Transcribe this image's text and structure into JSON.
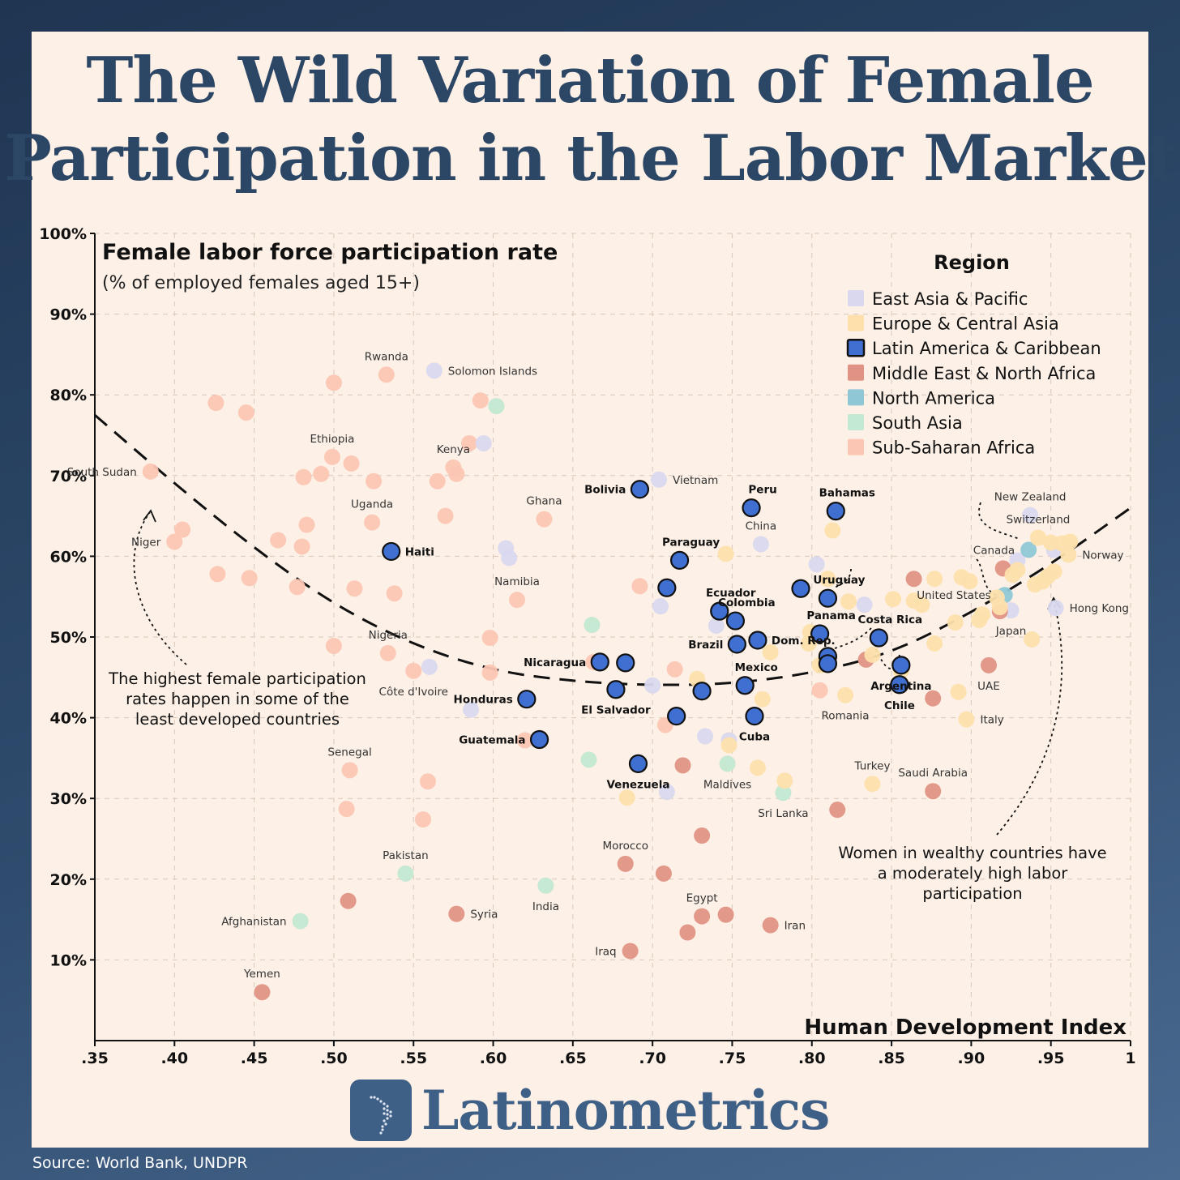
{
  "title_line1": "The Wild Variation of Female",
  "title_line2": "Participation in the Labor Market",
  "chart_data": {
    "type": "scatter",
    "title": "Female labor force participation rate",
    "subtitle": "(% of employed females aged 15+)",
    "xlabel": "Human Development Index",
    "xlim": [
      0.35,
      1.0
    ],
    "ylim": [
      0,
      100
    ],
    "x_ticks": [
      {
        "v": 0.35,
        "label": ".35"
      },
      {
        "v": 0.4,
        "label": ".40"
      },
      {
        "v": 0.45,
        "label": ".45"
      },
      {
        "v": 0.5,
        "label": ".50"
      },
      {
        "v": 0.55,
        "label": ".55"
      },
      {
        "v": 0.6,
        "label": ".60"
      },
      {
        "v": 0.65,
        "label": ".65"
      },
      {
        "v": 0.7,
        "label": ".70"
      },
      {
        "v": 0.75,
        "label": ".75"
      },
      {
        "v": 0.8,
        "label": ".80"
      },
      {
        "v": 0.85,
        "label": ".85"
      },
      {
        "v": 0.9,
        "label": ".90"
      },
      {
        "v": 0.95,
        "label": ".95"
      },
      {
        "v": 1.0,
        "label": "1"
      }
    ],
    "y_ticks": [
      {
        "v": 10,
        "label": "10%"
      },
      {
        "v": 20,
        "label": "20%"
      },
      {
        "v": 30,
        "label": "30%"
      },
      {
        "v": 40,
        "label": "40%"
      },
      {
        "v": 50,
        "label": "50%"
      },
      {
        "v": 60,
        "label": "60%"
      },
      {
        "v": 70,
        "label": "70%"
      },
      {
        "v": 80,
        "label": "80%"
      },
      {
        "v": 90,
        "label": "90%"
      },
      {
        "v": 100,
        "label": "100%"
      }
    ],
    "grid": true,
    "legend": {
      "title": "Region",
      "placement": "top-right",
      "items": [
        {
          "key": "eap",
          "label": "East Asia & Pacific",
          "color": "#d9d8ef"
        },
        {
          "key": "eca",
          "label": "Europe & Central Asia",
          "color": "#fde0ac"
        },
        {
          "key": "lac",
          "label": "Latin America & Caribbean",
          "color": "#3f6fd1"
        },
        {
          "key": "mena",
          "label": "Middle East & North Africa",
          "color": "#e09384"
        },
        {
          "key": "na",
          "label": "North America",
          "color": "#8fc7d6"
        },
        {
          "key": "sa",
          "label": "South Asia",
          "color": "#c3e8d3"
        },
        {
          "key": "ssa",
          "label": "Sub-Saharan Africa",
          "color": "#fcc6b4"
        }
      ]
    },
    "trend": [
      [
        0.35,
        77.5
      ],
      [
        0.4,
        69
      ],
      [
        0.45,
        61
      ],
      [
        0.5,
        54
      ],
      [
        0.55,
        49
      ],
      [
        0.6,
        45.8
      ],
      [
        0.65,
        44.5
      ],
      [
        0.7,
        44
      ],
      [
        0.75,
        44.2
      ],
      [
        0.8,
        45.5
      ],
      [
        0.85,
        48
      ],
      [
        0.9,
        53
      ],
      [
        0.95,
        59
      ],
      [
        1.0,
        66
      ]
    ],
    "points": [
      {
        "r": "ssa",
        "x": 0.385,
        "y": 70.5,
        "label": "South Sudan"
      },
      {
        "r": "ssa",
        "x": 0.4,
        "y": 61.8,
        "label": "Niger"
      },
      {
        "r": "ssa",
        "x": 0.405,
        "y": 63.3
      },
      {
        "r": "ssa",
        "x": 0.426,
        "y": 79
      },
      {
        "r": "ssa",
        "x": 0.427,
        "y": 57.8
      },
      {
        "r": "ssa",
        "x": 0.445,
        "y": 77.8
      },
      {
        "r": "ssa",
        "x": 0.447,
        "y": 57.3
      },
      {
        "r": "ssa",
        "x": 0.465,
        "y": 62
      },
      {
        "r": "ssa",
        "x": 0.477,
        "y": 56.2
      },
      {
        "r": "ssa",
        "x": 0.48,
        "y": 61.2
      },
      {
        "r": "ssa",
        "x": 0.481,
        "y": 69.8
      },
      {
        "r": "ssa",
        "x": 0.483,
        "y": 63.9
      },
      {
        "r": "ssa",
        "x": 0.492,
        "y": 70.2
      },
      {
        "r": "ssa",
        "x": 0.499,
        "y": 72.3,
        "label": "Ethiopia"
      },
      {
        "r": "ssa",
        "x": 0.5,
        "y": 48.9
      },
      {
        "r": "ssa",
        "x": 0.5,
        "y": 81.5
      },
      {
        "r": "ssa",
        "x": 0.511,
        "y": 71.5
      },
      {
        "r": "ssa",
        "x": 0.513,
        "y": 56
      },
      {
        "r": "ssa",
        "x": 0.524,
        "y": 64.2,
        "label": "Uganda"
      },
      {
        "r": "ssa",
        "x": 0.525,
        "y": 69.3
      },
      {
        "r": "ssa",
        "x": 0.533,
        "y": 82.5,
        "label": "Rwanda"
      },
      {
        "r": "ssa",
        "x": 0.534,
        "y": 48,
        "label": "Nigeria"
      },
      {
        "r": "ssa",
        "x": 0.538,
        "y": 55.4
      },
      {
        "r": "ssa",
        "x": 0.55,
        "y": 45.8,
        "label": "Côte d'Ivoire"
      },
      {
        "r": "ssa",
        "x": 0.51,
        "y": 33.5,
        "label": "Senegal"
      },
      {
        "r": "ssa",
        "x": 0.508,
        "y": 28.7
      },
      {
        "r": "ssa",
        "x": 0.556,
        "y": 27.4
      },
      {
        "r": "ssa",
        "x": 0.559,
        "y": 32.1
      },
      {
        "r": "ssa",
        "x": 0.565,
        "y": 69.3
      },
      {
        "r": "ssa",
        "x": 0.57,
        "y": 65
      },
      {
        "r": "ssa",
        "x": 0.575,
        "y": 71,
        "label": "Kenya"
      },
      {
        "r": "ssa",
        "x": 0.577,
        "y": 70.2
      },
      {
        "r": "ssa",
        "x": 0.585,
        "y": 74
      },
      {
        "r": "ssa",
        "x": 0.592,
        "y": 79.3
      },
      {
        "r": "ssa",
        "x": 0.598,
        "y": 49.9
      },
      {
        "r": "ssa",
        "x": 0.598,
        "y": 45.6
      },
      {
        "r": "ssa",
        "x": 0.615,
        "y": 54.6,
        "label": "Namibia"
      },
      {
        "r": "ssa",
        "x": 0.62,
        "y": 37.2
      },
      {
        "r": "ssa",
        "x": 0.632,
        "y": 64.6,
        "label": "Ghana"
      },
      {
        "r": "ssa",
        "x": 0.663,
        "y": 46.9
      },
      {
        "r": "ssa",
        "x": 0.692,
        "y": 56.3
      },
      {
        "r": "ssa",
        "x": 0.708,
        "y": 39.1
      },
      {
        "r": "ssa",
        "x": 0.714,
        "y": 46
      },
      {
        "r": "ssa",
        "x": 0.805,
        "y": 43.4
      },
      {
        "r": "eap",
        "x": 0.56,
        "y": 46.3
      },
      {
        "r": "eap",
        "x": 0.563,
        "y": 83,
        "label": "Solomon Islands"
      },
      {
        "r": "eap",
        "x": 0.586,
        "y": 41
      },
      {
        "r": "eap",
        "x": 0.594,
        "y": 74
      },
      {
        "r": "eap",
        "x": 0.608,
        "y": 61
      },
      {
        "r": "eap",
        "x": 0.61,
        "y": 59.8
      },
      {
        "r": "eap",
        "x": 0.704,
        "y": 69.5,
        "label": "Vietnam"
      },
      {
        "r": "eap",
        "x": 0.705,
        "y": 53.8
      },
      {
        "r": "eap",
        "x": 0.7,
        "y": 44
      },
      {
        "r": "eap",
        "x": 0.709,
        "y": 30.8
      },
      {
        "r": "eap",
        "x": 0.733,
        "y": 37.7
      },
      {
        "r": "eap",
        "x": 0.74,
        "y": 51.4
      },
      {
        "r": "eap",
        "x": 0.748,
        "y": 37.2
      },
      {
        "r": "eap",
        "x": 0.768,
        "y": 61.5,
        "label": "China"
      },
      {
        "r": "eap",
        "x": 0.803,
        "y": 59
      },
      {
        "r": "eap",
        "x": 0.833,
        "y": 54
      },
      {
        "r": "eap",
        "x": 0.937,
        "y": 65.1,
        "label": "New Zealand"
      },
      {
        "r": "eap",
        "x": 0.929,
        "y": 59.5
      },
      {
        "r": "eap",
        "x": 0.925,
        "y": 53.3,
        "label": "Japan"
      },
      {
        "r": "eap",
        "x": 0.952,
        "y": 60.8
      },
      {
        "r": "eap",
        "x": 0.953,
        "y": 53.6,
        "label": "Hong Kong"
      },
      {
        "r": "sa",
        "x": 0.602,
        "y": 78.6
      },
      {
        "r": "sa",
        "x": 0.662,
        "y": 51.5
      },
      {
        "r": "sa",
        "x": 0.66,
        "y": 34.8
      },
      {
        "r": "sa",
        "x": 0.545,
        "y": 20.7,
        "label": "Pakistan"
      },
      {
        "r": "sa",
        "x": 0.479,
        "y": 14.8,
        "label": "Afghanistan"
      },
      {
        "r": "sa",
        "x": 0.633,
        "y": 19.2,
        "label": "India"
      },
      {
        "r": "sa",
        "x": 0.747,
        "y": 34.3,
        "label": "Maldives"
      },
      {
        "r": "sa",
        "x": 0.782,
        "y": 30.7,
        "label": "Sri Lanka"
      },
      {
        "r": "mena",
        "x": 0.455,
        "y": 6,
        "label": "Yemen"
      },
      {
        "r": "mena",
        "x": 0.509,
        "y": 17.3
      },
      {
        "r": "mena",
        "x": 0.577,
        "y": 15.7,
        "label": "Syria"
      },
      {
        "r": "mena",
        "x": 0.686,
        "y": 11.1,
        "label": "Iraq"
      },
      {
        "r": "mena",
        "x": 0.683,
        "y": 21.9,
        "label": "Morocco"
      },
      {
        "r": "mena",
        "x": 0.707,
        "y": 20.7
      },
      {
        "r": "mena",
        "x": 0.719,
        "y": 34.1
      },
      {
        "r": "mena",
        "x": 0.731,
        "y": 25.4
      },
      {
        "r": "mena",
        "x": 0.731,
        "y": 15.4,
        "label": "Egypt"
      },
      {
        "r": "mena",
        "x": 0.722,
        "y": 13.4
      },
      {
        "r": "mena",
        "x": 0.746,
        "y": 15.6
      },
      {
        "r": "mena",
        "x": 0.774,
        "y": 14.3,
        "label": "Iran"
      },
      {
        "r": "mena",
        "x": 0.816,
        "y": 28.6
      },
      {
        "r": "mena",
        "x": 0.834,
        "y": 47.2
      },
      {
        "r": "mena",
        "x": 0.864,
        "y": 57.2
      },
      {
        "r": "mena",
        "x": 0.876,
        "y": 42.4
      },
      {
        "r": "mena",
        "x": 0.876,
        "y": 30.9,
        "label": "Saudi Arabia"
      },
      {
        "r": "mena",
        "x": 0.911,
        "y": 46.5,
        "label": "UAE"
      },
      {
        "r": "mena",
        "x": 0.918,
        "y": 53.2
      },
      {
        "r": "mena",
        "x": 0.92,
        "y": 58.5
      },
      {
        "r": "na",
        "x": 0.936,
        "y": 60.8,
        "label": "Canada"
      },
      {
        "r": "na",
        "x": 0.921,
        "y": 55.2,
        "label": "United States"
      },
      {
        "r": "eca",
        "x": 0.684,
        "y": 30.1
      },
      {
        "r": "eca",
        "x": 0.728,
        "y": 44.8
      },
      {
        "r": "eca",
        "x": 0.746,
        "y": 60.3
      },
      {
        "r": "eca",
        "x": 0.748,
        "y": 36.6
      },
      {
        "r": "eca",
        "x": 0.766,
        "y": 33.8
      },
      {
        "r": "eca",
        "x": 0.769,
        "y": 42.3
      },
      {
        "r": "eca",
        "x": 0.774,
        "y": 48.1
      },
      {
        "r": "eca",
        "x": 0.783,
        "y": 32.2
      },
      {
        "r": "eca",
        "x": 0.798,
        "y": 49.2
      },
      {
        "r": "eca",
        "x": 0.799,
        "y": 50.6
      },
      {
        "r": "eca",
        "x": 0.805,
        "y": 46.5
      },
      {
        "r": "eca",
        "x": 0.81,
        "y": 57.2
      },
      {
        "r": "eca",
        "x": 0.813,
        "y": 63.2
      },
      {
        "r": "eca",
        "x": 0.821,
        "y": 42.8,
        "label": "Romania"
      },
      {
        "r": "eca",
        "x": 0.823,
        "y": 54.4
      },
      {
        "r": "eca",
        "x": 0.838,
        "y": 47.8
      },
      {
        "r": "eca",
        "x": 0.838,
        "y": 31.8,
        "label": "Turkey"
      },
      {
        "r": "eca",
        "x": 0.851,
        "y": 54.7
      },
      {
        "r": "eca",
        "x": 0.856,
        "y": 45.8
      },
      {
        "r": "eca",
        "x": 0.864,
        "y": 54.5
      },
      {
        "r": "eca",
        "x": 0.869,
        "y": 54
      },
      {
        "r": "eca",
        "x": 0.877,
        "y": 49.2
      },
      {
        "r": "eca",
        "x": 0.877,
        "y": 57.2
      },
      {
        "r": "eca",
        "x": 0.89,
        "y": 51.8
      },
      {
        "r": "eca",
        "x": 0.892,
        "y": 43.2
      },
      {
        "r": "eca",
        "x": 0.894,
        "y": 57.4
      },
      {
        "r": "eca",
        "x": 0.897,
        "y": 39.8,
        "label": "Italy"
      },
      {
        "r": "eca",
        "x": 0.899,
        "y": 56.9
      },
      {
        "r": "eca",
        "x": 0.905,
        "y": 52.1
      },
      {
        "r": "eca",
        "x": 0.907,
        "y": 52.8
      },
      {
        "r": "eca",
        "x": 0.916,
        "y": 54.9
      },
      {
        "r": "eca",
        "x": 0.918,
        "y": 53.7
      },
      {
        "r": "eca",
        "x": 0.926,
        "y": 57.7
      },
      {
        "r": "eca",
        "x": 0.929,
        "y": 58.3
      },
      {
        "r": "eca",
        "x": 0.938,
        "y": 49.7
      },
      {
        "r": "eca",
        "x": 0.94,
        "y": 56.5
      },
      {
        "r": "eca",
        "x": 0.942,
        "y": 62.3,
        "label": "Switzerland"
      },
      {
        "r": "eca",
        "x": 0.945,
        "y": 56.9
      },
      {
        "r": "eca",
        "x": 0.948,
        "y": 57.5
      },
      {
        "r": "eca",
        "x": 0.95,
        "y": 61.7
      },
      {
        "r": "eca",
        "x": 0.952,
        "y": 58.1
      },
      {
        "r": "eca",
        "x": 0.957,
        "y": 61.6
      },
      {
        "r": "eca",
        "x": 0.961,
        "y": 60.2,
        "label": "Norway"
      },
      {
        "r": "eca",
        "x": 0.962,
        "y": 61.8
      },
      {
        "r": "lac",
        "x": 0.536,
        "y": 60.6,
        "label": "Haiti"
      },
      {
        "r": "lac",
        "x": 0.621,
        "y": 42.3,
        "label": "Honduras"
      },
      {
        "r": "lac",
        "x": 0.629,
        "y": 37.3,
        "label": "Guatemala"
      },
      {
        "r": "lac",
        "x": 0.667,
        "y": 46.9,
        "label": "Nicaragua"
      },
      {
        "r": "lac",
        "x": 0.677,
        "y": 43.5,
        "label": "El Salvador"
      },
      {
        "r": "lac",
        "x": 0.683,
        "y": 46.8
      },
      {
        "r": "lac",
        "x": 0.692,
        "y": 68.3,
        "label": "Bolivia"
      },
      {
        "r": "lac",
        "x": 0.691,
        "y": 34.3,
        "label": "Venezuela"
      },
      {
        "r": "lac",
        "x": 0.709,
        "y": 56.1
      },
      {
        "r": "lac",
        "x": 0.717,
        "y": 59.5,
        "label": "Paraguay"
      },
      {
        "r": "lac",
        "x": 0.715,
        "y": 40.2
      },
      {
        "r": "lac",
        "x": 0.731,
        "y": 43.3
      },
      {
        "r": "lac",
        "x": 0.742,
        "y": 53.2,
        "label": "Ecuador"
      },
      {
        "r": "lac",
        "x": 0.752,
        "y": 52,
        "label": "Colombia"
      },
      {
        "r": "lac",
        "x": 0.753,
        "y": 49.1,
        "label": "Brazil"
      },
      {
        "r": "lac",
        "x": 0.758,
        "y": 44,
        "label": "Mexico"
      },
      {
        "r": "lac",
        "x": 0.762,
        "y": 66,
        "label": "Peru"
      },
      {
        "r": "lac",
        "x": 0.766,
        "y": 49.6,
        "label": "Dom. Rep."
      },
      {
        "r": "lac",
        "x": 0.764,
        "y": 40.2,
        "label": "Cuba"
      },
      {
        "r": "lac",
        "x": 0.793,
        "y": 56
      },
      {
        "r": "lac",
        "x": 0.805,
        "y": 50.4,
        "label": "Panama"
      },
      {
        "r": "lac",
        "x": 0.81,
        "y": 47.6
      },
      {
        "r": "lac",
        "x": 0.81,
        "y": 46.7
      },
      {
        "r": "lac",
        "x": 0.81,
        "y": 54.8,
        "label": "Uruguay"
      },
      {
        "r": "lac",
        "x": 0.815,
        "y": 65.6,
        "label": "Bahamas"
      },
      {
        "r": "lac",
        "x": 0.842,
        "y": 49.9,
        "label": "Costa Rica"
      },
      {
        "r": "lac",
        "x": 0.855,
        "y": 44.1,
        "label": "Chile"
      },
      {
        "r": "lac",
        "x": 0.856,
        "y": 46.5,
        "label": "Argentina"
      }
    ],
    "annotations": [
      {
        "key": "low",
        "lines": [
          "The highest female participation",
          "rates happen in some of the",
          "least developed countries"
        ]
      },
      {
        "key": "high",
        "lines": [
          "Women in wealthy countries have",
          "a moderately high labor",
          "participation"
        ]
      }
    ]
  },
  "logo_text": "Latinometrics",
  "source": "Source: World Bank, UNDPR"
}
